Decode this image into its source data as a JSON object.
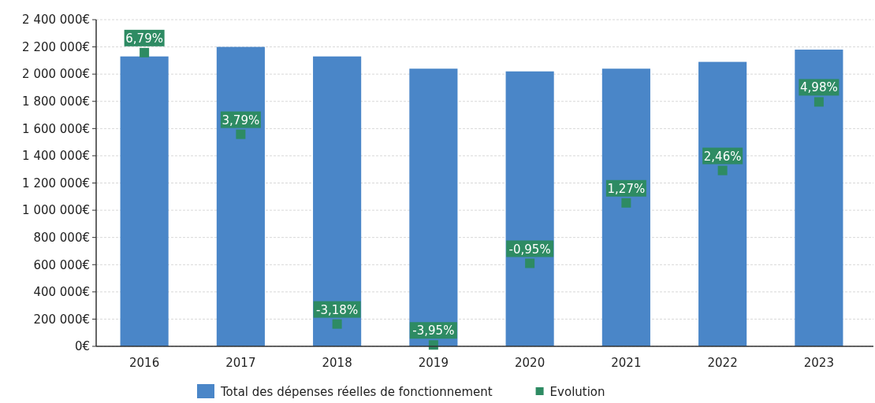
{
  "chart_data": {
    "type": "bar",
    "categories": [
      "2016",
      "2017",
      "2018",
      "2019",
      "2020",
      "2021",
      "2022",
      "2023"
    ],
    "series": [
      {
        "name": "Total des dépenses réelles de fonctionnement",
        "color": "#4a86c8",
        "values": [
          2130000,
          2200000,
          2130000,
          2040000,
          2020000,
          2040000,
          2090000,
          2180000
        ]
      },
      {
        "name": "Evolution",
        "type": "scatter",
        "axis": "y2",
        "color": "#2e8b63",
        "marker": "square",
        "values": [
          6.79,
          3.79,
          -3.18,
          -3.95,
          -0.95,
          1.27,
          2.46,
          4.98
        ],
        "value_labels": [
          "6,79%",
          "3,79%",
          "-3,18%",
          "-3,95%",
          "-0,95%",
          "1,27%",
          "2,46%",
          "4,98%"
        ]
      }
    ],
    "ylim": [
      0,
      2400000
    ],
    "yticks": [
      {
        "value": 0,
        "label": "0€"
      },
      {
        "value": 200000,
        "label": "200 000€"
      },
      {
        "value": 400000,
        "label": "400 000€"
      },
      {
        "value": 600000,
        "label": "600 000€"
      },
      {
        "value": 800000,
        "label": "800 000€"
      },
      {
        "value": 1000000,
        "label": "1 000 000€"
      },
      {
        "value": 1200000,
        "label": "1 200 000€"
      },
      {
        "value": 1400000,
        "label": "1 400 000€"
      },
      {
        "value": 1600000,
        "label": "1 600 000€"
      },
      {
        "value": 1800000,
        "label": "1 800 000€"
      },
      {
        "value": 2000000,
        "label": "2 000 000€"
      },
      {
        "value": 2200000,
        "label": "2 200 000€"
      },
      {
        "value": 2400000,
        "label": "2 400 000€"
      }
    ],
    "y2lim": [
      -4,
      8
    ],
    "grid": "y",
    "legend": "bottom"
  }
}
